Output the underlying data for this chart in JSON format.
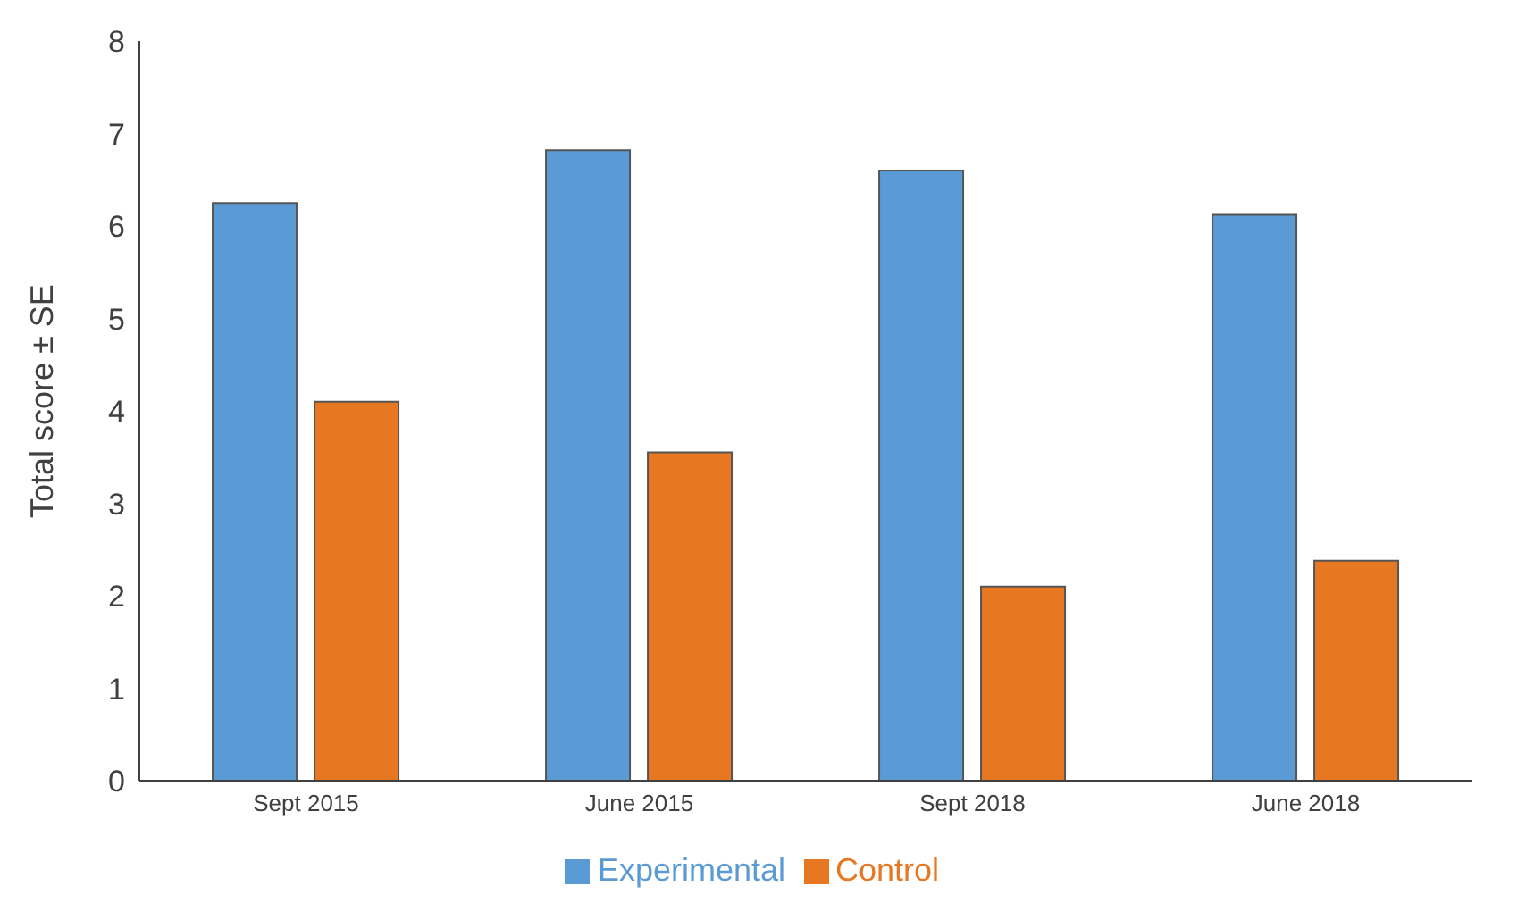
{
  "chart_data": {
    "type": "bar",
    "ylabel": "Total score ± SE",
    "categories": [
      "Sept 2015",
      "June 2015",
      "Sept 2018",
      "June 2018"
    ],
    "series": [
      {
        "name": "Experimental",
        "color": "#5b9bd5",
        "values": [
          6.25,
          6.82,
          6.6,
          6.12
        ]
      },
      {
        "name": "Control",
        "color": "#e87722",
        "values": [
          4.1,
          3.55,
          2.1,
          2.38
        ]
      }
    ],
    "ylim": [
      0,
      8
    ],
    "yticks": [
      0,
      1,
      2,
      3,
      4,
      5,
      6,
      7,
      8
    ],
    "grid": false,
    "legend": "bottom"
  }
}
